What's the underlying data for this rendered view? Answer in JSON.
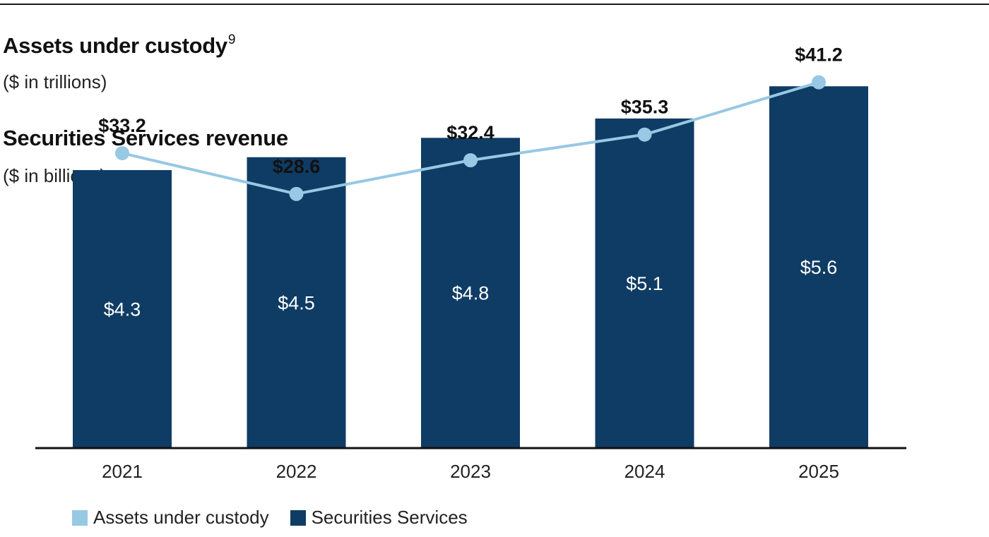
{
  "header": {
    "title1": "Assets under custody",
    "title1_sup": "9",
    "subtitle1": "($ in trillions)",
    "title2": "Securities Services revenue",
    "subtitle2": "($ in billions)"
  },
  "colors": {
    "bar": "#0f3c64",
    "line": "#97c8e4",
    "axis": "#111111",
    "bar_label": "#ffffff",
    "line_label": "#111111"
  },
  "chart_data": {
    "type": "bar+line",
    "categories": [
      "2021",
      "2022",
      "2023",
      "2024",
      "2025"
    ],
    "series": [
      {
        "name": "Securities Services",
        "kind": "bar",
        "unit": "$ in billions",
        "values": [
          4.3,
          4.5,
          4.8,
          5.1,
          5.6
        ],
        "labels": [
          "$4.3",
          "$4.5",
          "$4.8",
          "$5.1",
          "$5.6"
        ]
      },
      {
        "name": "Assets under custody",
        "kind": "line",
        "unit": "$ in trillions",
        "values": [
          33.2,
          28.6,
          32.4,
          35.3,
          41.2
        ],
        "labels": [
          "$33.2",
          "$28.6",
          "$32.4",
          "$35.3",
          "$41.2"
        ]
      }
    ],
    "bar_ylim": [
      0,
      6.5
    ],
    "line_ylim": [
      0,
      47.3
    ],
    "legend": [
      "Assets under custody",
      "Securities Services"
    ],
    "legend_position": "bottom-left",
    "grid": false
  }
}
